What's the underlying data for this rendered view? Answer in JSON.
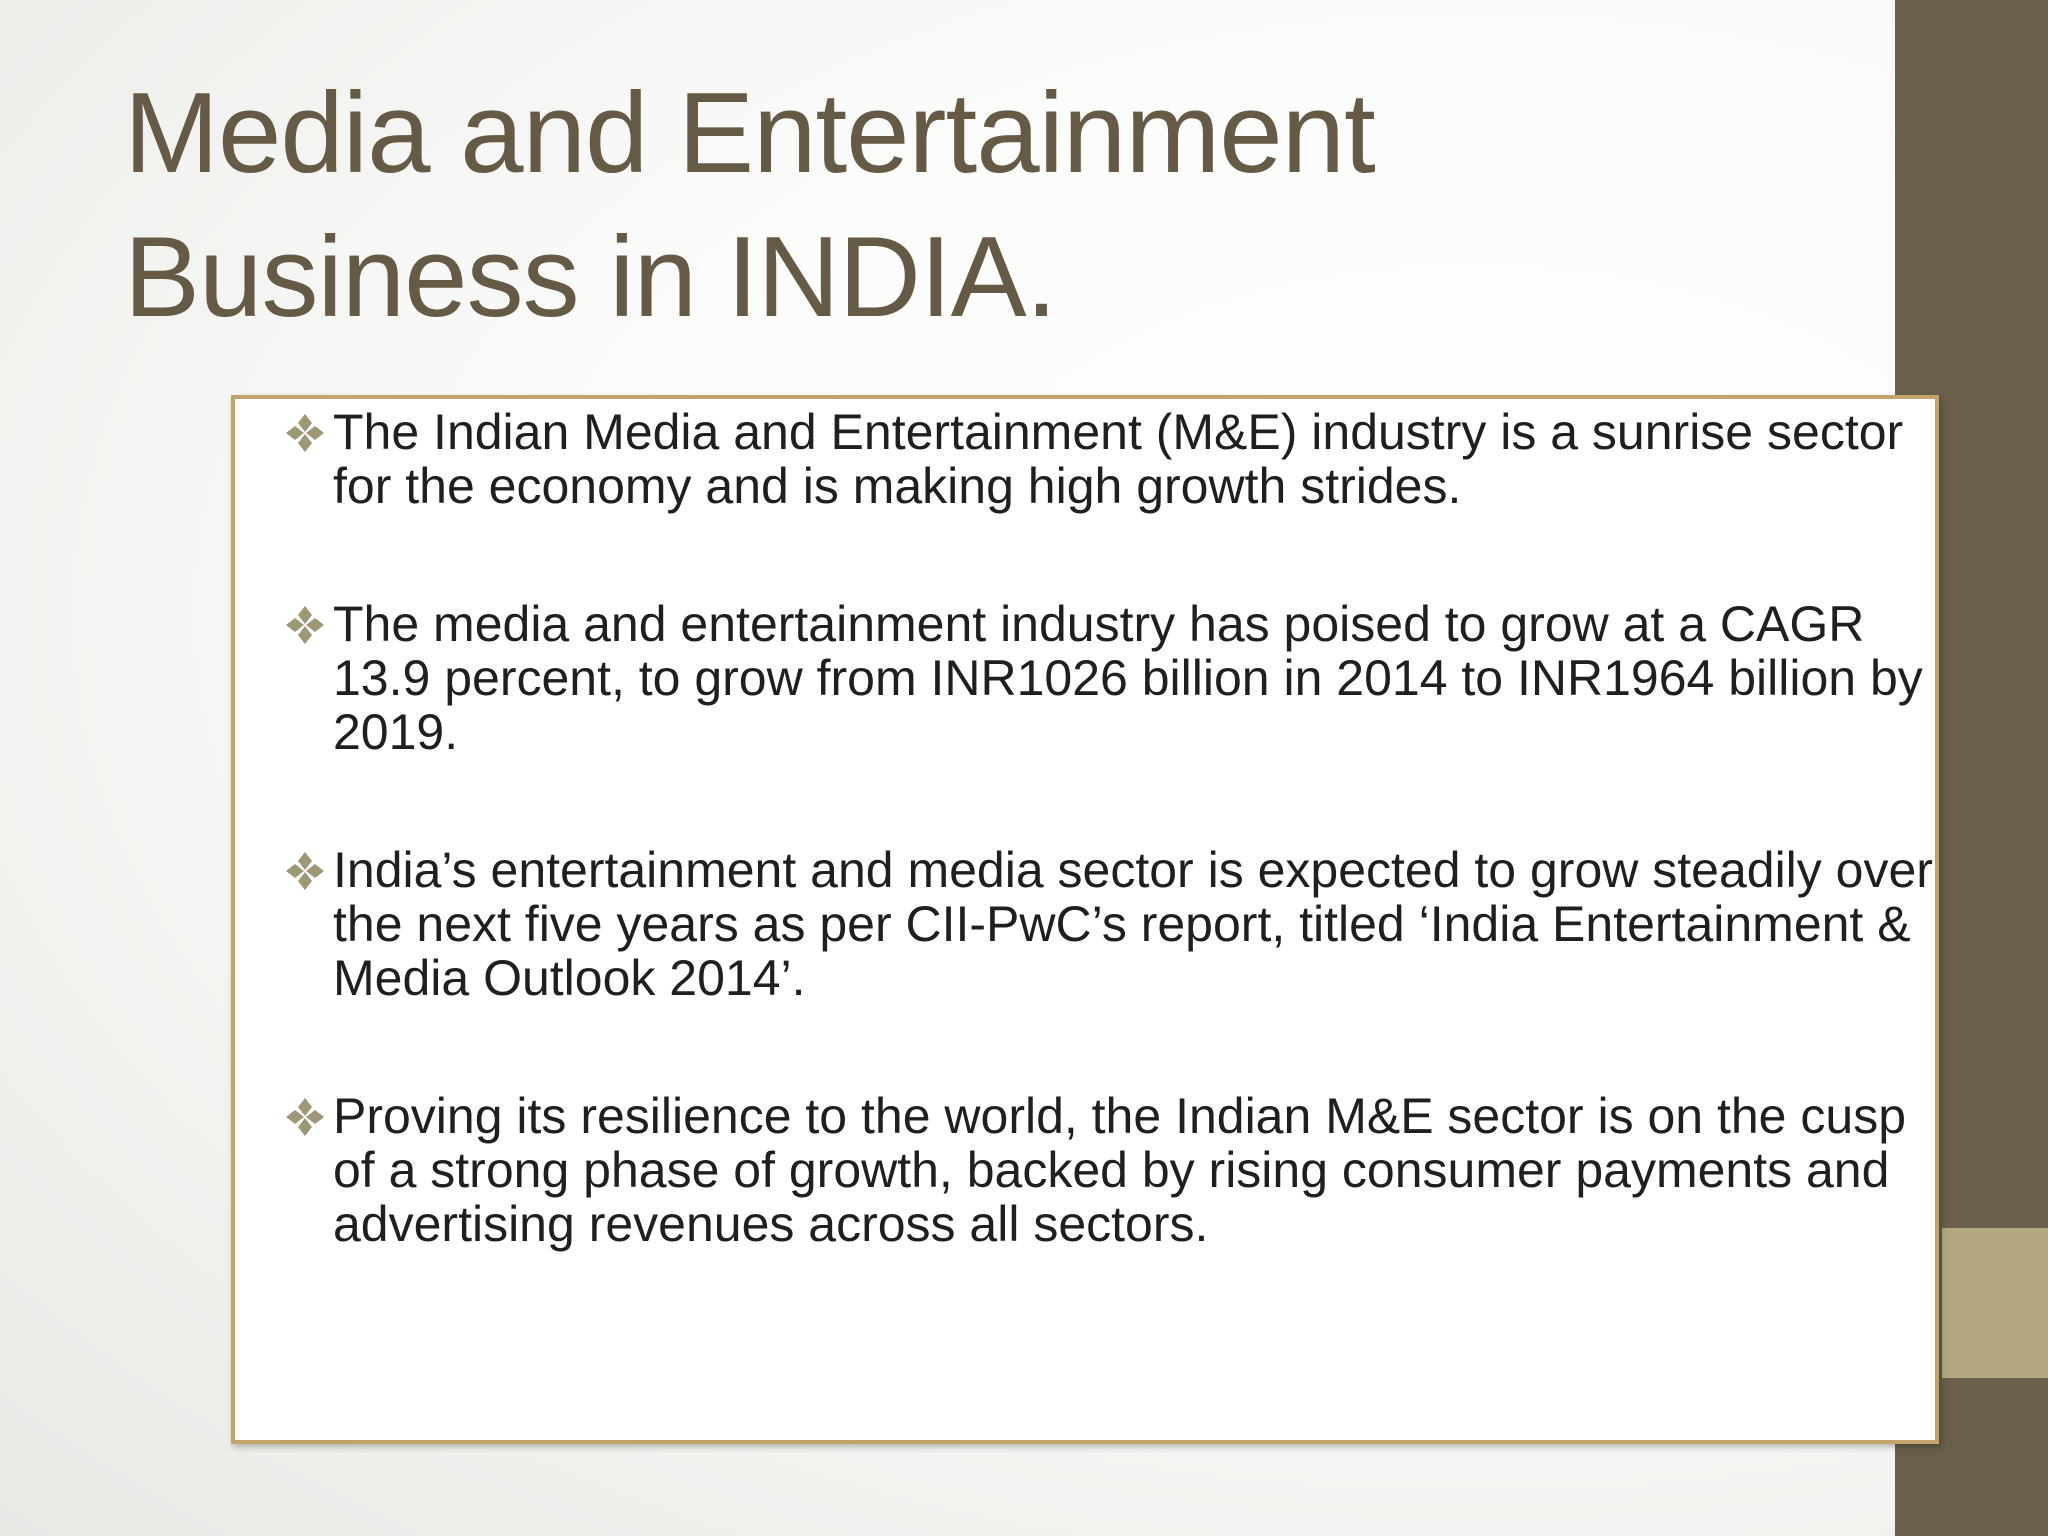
{
  "slide": {
    "title_lines": [
      "Media and Entertainment",
      "Business in INDIA."
    ],
    "bullets": [
      {
        "icon": "diamond-bullet-icon",
        "text": "The Indian Media and Entertainment (M&E) industry is a sunrise sector for the economy and is making high growth strides."
      },
      {
        "icon": "diamond-bullet-icon",
        "text": "The media and entertainment industry has poised to grow at a CAGR 13.9 percent, to grow from INR1026 billion in 2014 to INR1964 billion by 2019."
      },
      {
        "icon": "diamond-bullet-icon",
        "text": "India’s entertainment and media sector is expected to grow steadily over the next five years as per CII-PwC’s report, titled ‘India Entertainment & Media Outlook 2014’."
      },
      {
        "icon": "diamond-bullet-icon",
        "text": "Proving its resilience to the world, the Indian M&E sector is on the cusp of a strong phase of growth, backed by rising consumer payments and advertising revenues across all sectors."
      }
    ]
  },
  "colors": {
    "title": "#655a45",
    "side_bar": "#6a5f4a",
    "side_accent": "#b3a87f",
    "box_border": "#c2a36a",
    "bullet_icon": "#9c9877",
    "body_text": "#1f1f1f"
  }
}
